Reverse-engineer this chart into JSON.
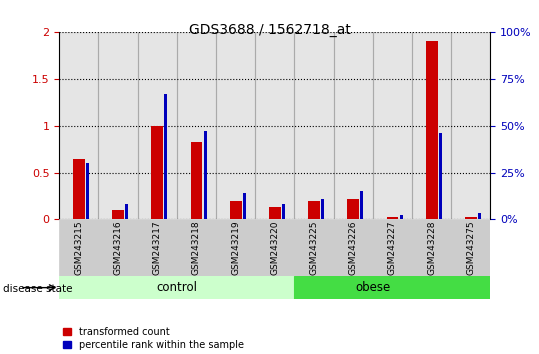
{
  "title": "GDS3688 / 1562718_at",
  "categories": [
    "GSM243215",
    "GSM243216",
    "GSM243217",
    "GSM243218",
    "GSM243219",
    "GSM243220",
    "GSM243225",
    "GSM243226",
    "GSM243227",
    "GSM243228",
    "GSM243275"
  ],
  "red_values": [
    0.64,
    0.1,
    1.0,
    0.83,
    0.2,
    0.13,
    0.2,
    0.22,
    0.03,
    1.9,
    0.03
  ],
  "blue_pct": [
    30,
    8,
    67,
    47,
    14,
    8,
    11,
    15,
    2.5,
    46,
    3.5
  ],
  "control_count": 6,
  "obese_count": 5,
  "control_label": "control",
  "obese_label": "obese",
  "disease_state_label": "disease state",
  "ylim_left": [
    0,
    2
  ],
  "ylim_right": [
    0,
    100
  ],
  "yticks_left": [
    0,
    0.5,
    1.0,
    1.5,
    2.0
  ],
  "ytick_labels_left": [
    "0",
    "0.5",
    "1",
    "1.5",
    "2"
  ],
  "yticks_right": [
    0,
    25,
    50,
    75,
    100
  ],
  "ytick_labels_right": [
    "0%",
    "25%",
    "50%",
    "75%",
    "100%"
  ],
  "red_color": "#CC0000",
  "blue_color": "#0000BB",
  "control_bg": "#CCFFCC",
  "obese_bg": "#44DD44",
  "cell_bg": "#CCCCCC",
  "legend_red": "transformed count",
  "legend_blue": "percentile rank within the sample",
  "red_bar_width": 0.3,
  "blue_bar_width": 0.08
}
